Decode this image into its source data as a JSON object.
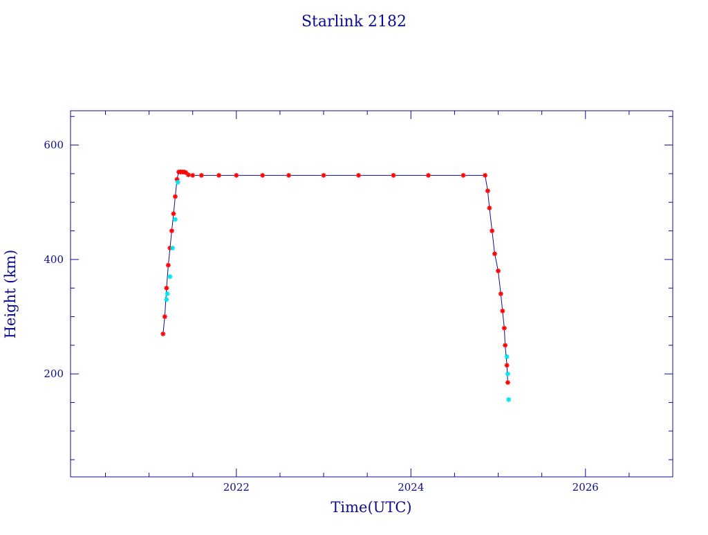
{
  "chart_data": {
    "type": "scatter",
    "title": "Starlink 2182",
    "xlabel": "Time(UTC)",
    "ylabel": "Height (km)",
    "xlim": [
      2020.1,
      2027.0
    ],
    "ylim": [
      20,
      660
    ],
    "x_ticks": [
      2022,
      2024,
      2026
    ],
    "x_tick_labels": [
      "2022",
      "2024",
      "2026"
    ],
    "y_ticks": [
      200,
      400,
      600
    ],
    "y_tick_labels": [
      "200",
      "400",
      "600"
    ],
    "grid": false,
    "colors": {
      "axis": "#0b0b8f",
      "primary_points": "#ff0000",
      "secondary_points": "#00e5ee"
    },
    "series": [
      {
        "marker": "star",
        "color": "#ff0000",
        "x": [
          2021.16,
          2021.18,
          2021.2,
          2021.22,
          2021.24,
          2021.26,
          2021.28,
          2021.3,
          2021.32,
          2021.34,
          2021.36,
          2021.38,
          2021.4,
          2021.42,
          2021.45,
          2021.5,
          2021.6,
          2021.8,
          2022.0,
          2022.3,
          2022.6,
          2023.0,
          2023.4,
          2023.8,
          2024.2,
          2024.6,
          2024.85,
          2024.88,
          2024.9,
          2024.93,
          2024.96,
          2025.0,
          2025.03,
          2025.05,
          2025.07,
          2025.08,
          2025.1,
          2025.11
        ],
        "y": [
          270,
          300,
          350,
          390,
          420,
          450,
          480,
          510,
          540,
          553,
          553,
          553,
          553,
          552,
          548,
          547,
          547,
          547,
          547,
          547,
          547,
          547,
          547,
          547,
          547,
          547,
          547,
          520,
          490,
          450,
          410,
          380,
          340,
          310,
          280,
          250,
          215,
          185
        ]
      },
      {
        "marker": "star",
        "color": "#00e5ee",
        "x": [
          2021.2,
          2021.21,
          2021.24,
          2021.27,
          2021.3,
          2021.33,
          2025.1,
          2025.11,
          2025.12
        ],
        "y": [
          330,
          340,
          370,
          420,
          470,
          535,
          230,
          200,
          155
        ]
      }
    ]
  }
}
